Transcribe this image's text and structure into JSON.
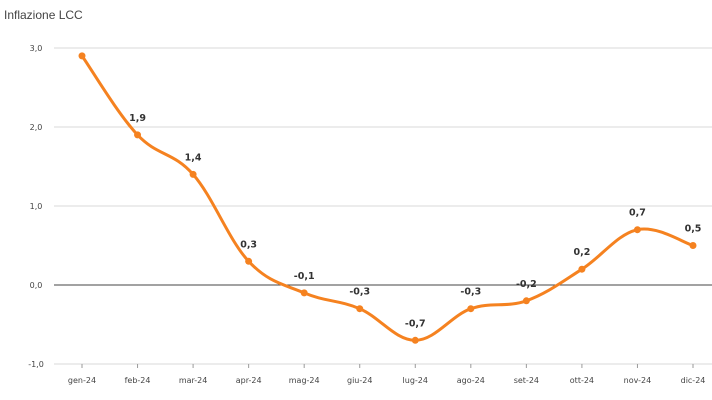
{
  "chart_data": {
    "type": "line",
    "title": "Inflazione LCC",
    "xlabel": "",
    "ylabel": "",
    "categories": [
      "gen-24",
      "feb-24",
      "mar-24",
      "apr-24",
      "mag-24",
      "giu-24",
      "lug-24",
      "ago-24",
      "set-24",
      "ott-24",
      "nov-24",
      "dic-24"
    ],
    "series": [
      {
        "values": [
          2.9,
          1.9,
          1.4,
          0.3,
          -0.1,
          -0.3,
          -0.7,
          -0.3,
          -0.2,
          0.2,
          0.7,
          0.5
        ]
      }
    ],
    "data_labels": [
      "",
      "1,9",
      "1,4",
      "0,3",
      "-0,1",
      "-0,3",
      "-0,7",
      "-0,3",
      "-0,2",
      "0,2",
      "0,7",
      "0,5"
    ],
    "ylim": [
      -1.0,
      3.0
    ],
    "yticks": [
      {
        "value": 3.0,
        "label": "3,0"
      },
      {
        "value": 2.0,
        "label": "2,0"
      },
      {
        "value": 1.0,
        "label": "1,0"
      },
      {
        "value": 0.0,
        "label": "0,0"
      },
      {
        "value": -1.0,
        "label": "-1,0"
      }
    ],
    "grid": true,
    "legend": "none",
    "colors": {
      "line": "#f58220",
      "grid": "#d9d9d9",
      "zero_line": "#444444",
      "text": "#444444"
    }
  }
}
